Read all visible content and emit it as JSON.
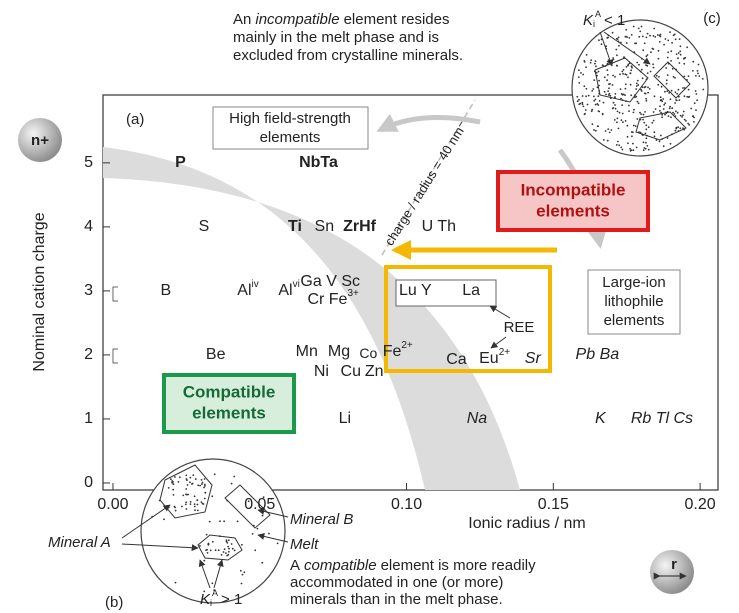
{
  "chart_data": {
    "type": "scatter",
    "x_label": "Ionic radius / nm",
    "y_label": "Nominal cation charge",
    "xlim": [
      -0.0034,
      0.2061
    ],
    "ylim": [
      -0.11,
      6.06
    ],
    "xticks": [
      {
        "value": 0,
        "label": "0.00"
      },
      {
        "value": 0.05,
        "label": "0.05"
      },
      {
        "value": 0.1,
        "label": "0.10"
      },
      {
        "value": 0.15,
        "label": "0.15"
      },
      {
        "value": 0.2,
        "label": "0.20"
      }
    ],
    "yticks": [
      0,
      1,
      2,
      3,
      4,
      5
    ],
    "elements": [
      {
        "label": "P",
        "radius": 0.023,
        "charge": 5,
        "style": "bold"
      },
      {
        "label": "NbTa",
        "radius": 0.07,
        "charge": 5,
        "style": "bold"
      },
      {
        "label": "S",
        "radius": 0.031,
        "charge": 4,
        "style": "normal"
      },
      {
        "label": "Ti",
        "radius": 0.062,
        "charge": 4,
        "style": "bold"
      },
      {
        "label": "Sn",
        "radius": 0.072,
        "charge": 4,
        "style": "normal"
      },
      {
        "label": "ZrHf",
        "radius": 0.084,
        "charge": 4,
        "style": "bold"
      },
      {
        "label": "U Th",
        "radius": 0.111,
        "charge": 4,
        "style": "normal"
      },
      {
        "label": "B",
        "radius": 0.018,
        "charge": 3,
        "style": "normal"
      },
      {
        "label": "Al",
        "sup": "iv",
        "radius": 0.046,
        "charge": 3,
        "style": "normal"
      },
      {
        "label": "Al",
        "sup": "vi",
        "radius": 0.06,
        "charge": 3,
        "style": "normal"
      },
      {
        "label": "Ga V Sc",
        "radius": 0.074,
        "charge": 3,
        "style": "normal"
      },
      {
        "label": "Cr Fe",
        "sup": "3+",
        "radius": 0.075,
        "charge": 3,
        "style": "normal"
      },
      {
        "label": "Lu Y",
        "radius": 0.103,
        "charge": 3,
        "style": "normal"
      },
      {
        "label": "La",
        "radius": 0.122,
        "charge": 3,
        "style": "normal"
      },
      {
        "label": "Be",
        "radius": 0.035,
        "charge": 2,
        "style": "normal"
      },
      {
        "label": "Mn",
        "radius": 0.066,
        "charge": 2,
        "style": "normal"
      },
      {
        "label": "Mg",
        "radius": 0.077,
        "charge": 2,
        "style": "normal"
      },
      {
        "label": "Co",
        "radius": 0.087,
        "charge": 2,
        "style": "normal"
      },
      {
        "label": "Fe",
        "sup": "2+",
        "radius": 0.097,
        "charge": 2,
        "style": "normal"
      },
      {
        "label": "Ni",
        "radius": 0.071,
        "charge": 2,
        "style": "normal"
      },
      {
        "label": "Cu",
        "radius": 0.081,
        "charge": 2,
        "style": "normal"
      },
      {
        "label": "Zn",
        "radius": 0.089,
        "charge": 2,
        "style": "normal"
      },
      {
        "label": "Ca",
        "radius": 0.117,
        "charge": 2,
        "style": "normal"
      },
      {
        "label": "Eu",
        "sup": "2+",
        "radius": 0.13,
        "charge": 2,
        "style": "normal"
      },
      {
        "label": "Sr",
        "radius": 0.143,
        "charge": 2,
        "style": "italic"
      },
      {
        "label": "Pb Ba",
        "radius": 0.165,
        "charge": 2,
        "style": "italic"
      },
      {
        "label": "Li",
        "radius": 0.079,
        "charge": 1,
        "style": "normal"
      },
      {
        "label": "Na",
        "radius": 0.124,
        "charge": 1,
        "style": "italic"
      },
      {
        "label": "K",
        "radius": 0.166,
        "charge": 1,
        "style": "italic"
      },
      {
        "label": "Rb Tl Cs",
        "radius": 0.187,
        "charge": 1,
        "style": "italic"
      }
    ],
    "annotations": {
      "caption_top": {
        "pre": "An",
        "em": "incompatible",
        "post": "element resides",
        "line2": "mainly in the melt phase and is",
        "line3": "excluded from crystalline minerals."
      },
      "caption_bottom": {
        "pre": "A",
        "em": "compatible",
        "post": "element is more readily",
        "line2": "accommodated in one (or more)",
        "line3": "minerals than in the melt phase."
      },
      "panel_a": "(a)",
      "panel_b": "(b)",
      "panel_c": "(c)",
      "hfs": [
        "High field-strength",
        "elements"
      ],
      "lil": [
        "Large-ion",
        "lithophile",
        "elements"
      ],
      "incompatible": [
        "Incompatible",
        "elements"
      ],
      "compatible": [
        "Compatible",
        "elements"
      ],
      "ree": "REE",
      "slope_label": "charge / radius = 40 nm⁻¹",
      "ion_charge": "n+",
      "ion_radius": "r",
      "mineral_a": "Mineral A",
      "mineral_b": "Mineral B",
      "melt": "Melt",
      "k_incompat": {
        "base": "K",
        "sub": "i",
        "sup": "A",
        "rel": "< 1"
      },
      "k_compat": {
        "base": "K",
        "sub": "i",
        "sup": "A",
        "rel": "> 1"
      }
    }
  }
}
